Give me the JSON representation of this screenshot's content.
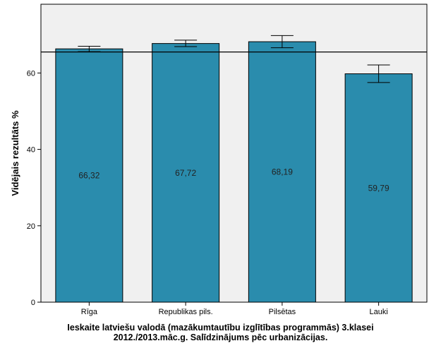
{
  "chart_data": {
    "type": "bar",
    "categories": [
      "Rīga",
      "Republikas pils.",
      "Pilsētas",
      "Lauki"
    ],
    "values": [
      66.32,
      67.72,
      68.19,
      59.79
    ],
    "value_labels": [
      "66,32",
      "67,72",
      "68,19",
      "59,79"
    ],
    "error_bars": [
      {
        "low": 65.6,
        "high": 67.0
      },
      {
        "low": 66.9,
        "high": 68.6
      },
      {
        "low": 66.6,
        "high": 69.8
      },
      {
        "low": 57.5,
        "high": 62.1
      }
    ],
    "reference_line": 65.5,
    "ylabel": "Vidējais rezultāts %",
    "ylim": [
      0,
      78
    ],
    "yticks": [
      0,
      20,
      40,
      60
    ],
    "grid": false,
    "colors": {
      "bar": "#2a8cad",
      "plot_bg": "#f0f0f0",
      "ref_line": "#000000"
    }
  },
  "caption": {
    "line1": "Ieskaite latviešu valodā (mazākumtautību izglītības programmās) 3.klasei",
    "line2": "2012./2013.māc.g. Salīdzinājums pēc urbanizācijas."
  }
}
